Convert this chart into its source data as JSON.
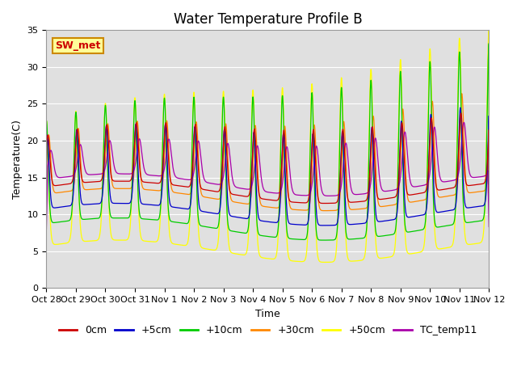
{
  "title": "Water Temperature Profile B",
  "xlabel": "Time",
  "ylabel": "Temperature(C)",
  "ylim": [
    0,
    35
  ],
  "lines": [
    {
      "label": "0cm",
      "color": "#cc0000"
    },
    {
      "label": "+5cm",
      "color": "#0000cc"
    },
    {
      "label": "+10cm",
      "color": "#00cc00"
    },
    {
      "label": "+30cm",
      "color": "#ff8800"
    },
    {
      "label": "+50cm",
      "color": "#ffff00"
    },
    {
      "label": "TC_temp11",
      "color": "#aa00aa"
    }
  ],
  "xtick_labels": [
    "Oct 28",
    "Oct 29",
    "Oct 30",
    "Oct 31",
    "Nov 1",
    "Nov 2",
    "Nov 3",
    "Nov 4",
    "Nov 5",
    "Nov 6",
    "Nov 7",
    "Nov 8",
    "Nov 9",
    "Nov 10",
    "Nov 11",
    "Nov 12"
  ],
  "annotation_text": "SW_met",
  "annotation_color": "#cc0000",
  "annotation_bg": "#ffff99",
  "annotation_border": "#cc8800",
  "title_fontsize": 12,
  "axis_fontsize": 9,
  "tick_fontsize": 8,
  "legend_fontsize": 9
}
